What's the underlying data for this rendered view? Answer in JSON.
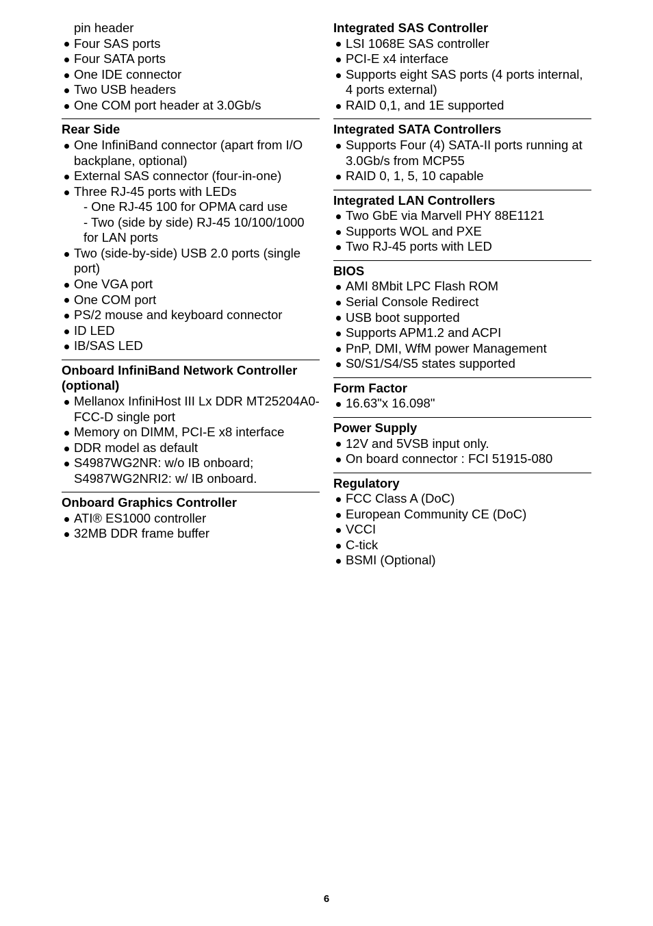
{
  "left": {
    "top_continuation": "pin header",
    "top_items": [
      "Four SAS ports",
      "Four SATA ports",
      "One IDE connector",
      "Two USB headers",
      "One COM port header at 3.0Gb/s"
    ],
    "rear_side": {
      "title": "Rear Side",
      "items": [
        "One InfiniBand connector (apart from I/O backplane, optional)",
        "External SAS connector (four-in-one)",
        "Three RJ-45 ports with LEDs",
        "Two (side-by-side) USB 2.0 ports (single port)",
        "One VGA port",
        "One COM port",
        "PS/2 mouse and keyboard connector",
        "ID LED",
        "IB/SAS LED"
      ],
      "rj45_sub": [
        "- One RJ-45 100 for OPMA card use",
        "- Two (side by side) RJ-45 10/100/1000 for LAN ports"
      ]
    },
    "infiniband": {
      "title": "Onboard InfiniBand Network Controller (optional)",
      "items": [
        "Mellanox InfiniHost III Lx DDR MT25204A0-FCC-D single port",
        "Memory on DIMM, PCI-E x8 interface",
        "DDR model as default",
        "S4987WG2NR: w/o IB onboard; S4987WG2NRI2: w/ IB onboard."
      ]
    },
    "graphics": {
      "title": "Onboard Graphics Controller",
      "items": [
        "ATI® ES1000 controller",
        "32MB DDR frame buffer"
      ]
    }
  },
  "right": {
    "sas": {
      "title": "Integrated SAS Controller",
      "items": [
        "LSI 1068E SAS controller",
        "PCI-E x4 interface",
        "Supports eight SAS ports (4 ports internal, 4 ports external)",
        "RAID 0,1, and 1E supported"
      ]
    },
    "sata": {
      "title": "Integrated SATA Controllers",
      "items": [
        "Supports Four (4) SATA-II ports running at 3.0Gb/s from MCP55",
        "RAID 0, 1, 5, 10 capable"
      ]
    },
    "lan": {
      "title": "Integrated LAN Controllers",
      "items": [
        "Two GbE via Marvell PHY 88E1121",
        "Supports WOL and PXE",
        "Two RJ-45 ports with LED"
      ]
    },
    "bios": {
      "title": "BIOS",
      "items": [
        "AMI 8Mbit LPC Flash ROM",
        "Serial Console Redirect",
        "USB boot supported",
        "Supports APM1.2 and ACPI",
        "PnP, DMI, WfM power Management",
        "S0/S1/S4/S5 states supported"
      ]
    },
    "form_factor": {
      "title": "Form Factor",
      "items": [
        "16.63\"x 16.098\""
      ]
    },
    "power_supply": {
      "title": "Power Supply",
      "items": [
        "12V and 5VSB input only.",
        "On board connector : FCI 51915-080"
      ]
    },
    "regulatory": {
      "title": "Regulatory",
      "items": [
        "FCC Class A (DoC)",
        "European Community CE (DoC)",
        "VCCI",
        "C-tick",
        "BSMI (Optional)"
      ]
    }
  },
  "page_number": "6"
}
